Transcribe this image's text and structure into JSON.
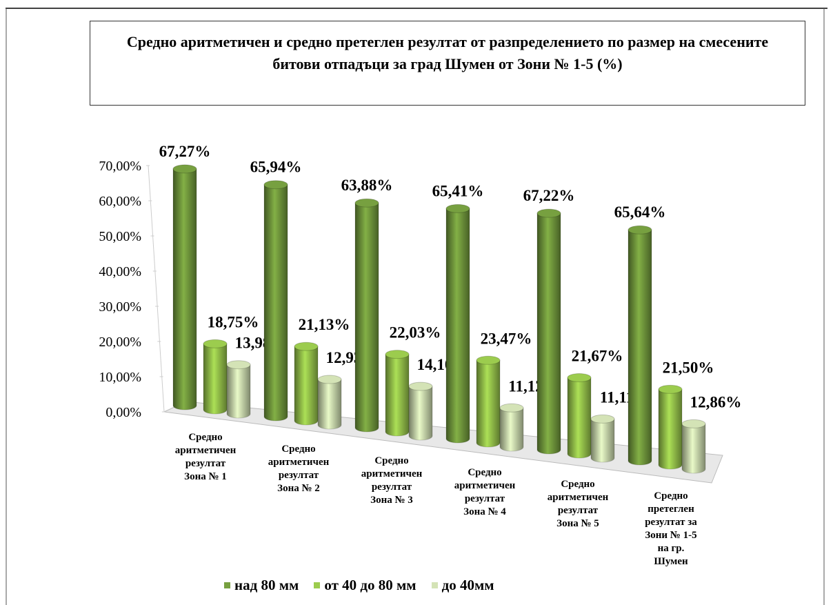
{
  "chart_data": {
    "type": "cylinder3d",
    "title": "Средно аритметичен и средно претеглен резултат от разпределението по размер на смесените битови отпадъци за град Шумен от Зони № 1-5 (%)",
    "categories": [
      "Средно\nаритметичен\nрезултат\nЗона № 1",
      "Средно\nаритметичен\nрезултат\nЗона № 2",
      "Средно\nаритметичен\nрезултат\nЗона № 3",
      "Средно\nаритметичен\nрезултат\nЗона № 4",
      "Средно\nаритметичен\nрезултат\nЗона № 5",
      "Средно\nпретеглен\nрезултат  за\nЗони № 1-5\nна гр.\nШумен"
    ],
    "series": [
      {
        "name": "над 80 мм",
        "color": "#77a040",
        "values": [
          67.27,
          65.94,
          63.88,
          65.41,
          67.22,
          65.64
        ],
        "value_labels": [
          "67,27%",
          "65,94%",
          "63,88%",
          "65,41%",
          "67,22%",
          "65,64%"
        ]
      },
      {
        "name": "от 40 до 80 мм",
        "color": "#9ccc4e",
        "values": [
          18.75,
          21.13,
          22.03,
          23.47,
          21.67,
          21.5
        ],
        "value_labels": [
          "18,75%",
          "21,13%",
          "22,03%",
          "23,47%",
          "21,67%",
          "21,50%"
        ]
      },
      {
        "name": "до 40мм",
        "color": "#d4e3b6",
        "values": [
          13.98,
          12.93,
          14.1,
          11.12,
          11.11,
          12.86
        ],
        "value_labels": [
          "13,98%",
          "12,93%",
          "14,10%",
          "11,12%",
          "11,11%",
          "12,86%"
        ]
      }
    ],
    "ylim": [
      0,
      70
    ],
    "yticks": [
      {
        "value": 0,
        "label": "0,00%"
      },
      {
        "value": 10,
        "label": "10,00%"
      },
      {
        "value": 20,
        "label": "20,00%"
      },
      {
        "value": 30,
        "label": "30,00%"
      },
      {
        "value": 40,
        "label": "40,00%"
      },
      {
        "value": 50,
        "label": "50,00%"
      },
      {
        "value": 60,
        "label": "60,00%"
      },
      {
        "value": 70,
        "label": "70,00%"
      }
    ],
    "legend": "bottom"
  }
}
